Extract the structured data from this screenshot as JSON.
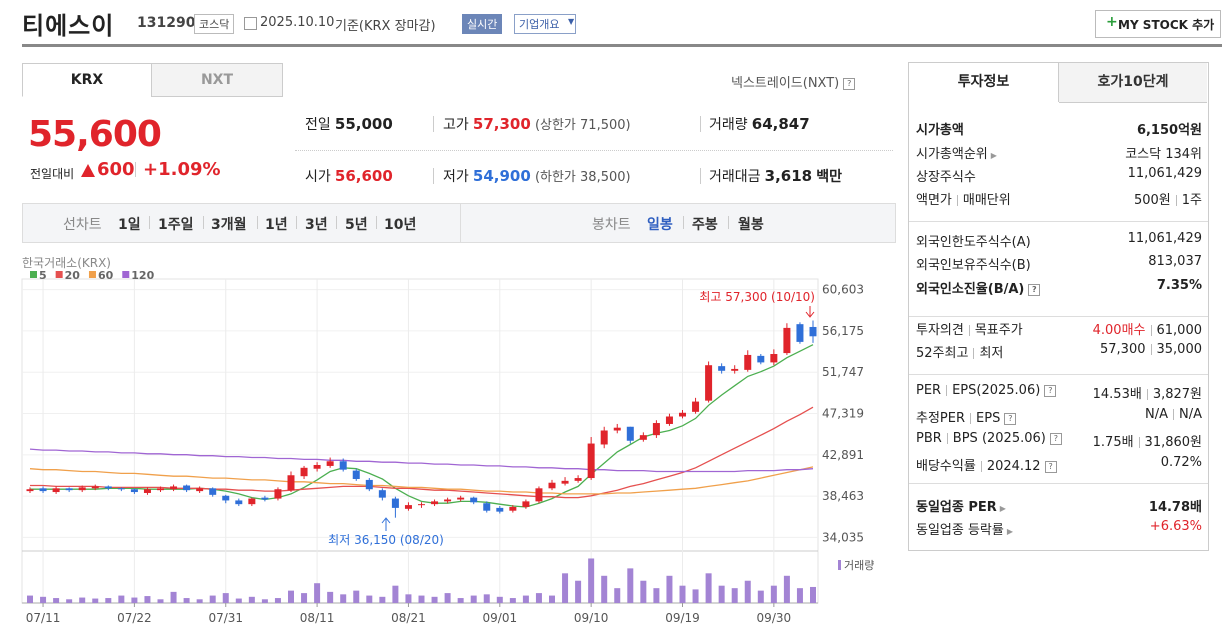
{
  "header": {
    "name": "티에스이",
    "code": "131290",
    "market": "코스닥",
    "date": "2025.10.10",
    "basis": "기준(KRX 장마감)",
    "realtime": "실시간",
    "overview": "기업개요",
    "mystock": "MY STOCK 추가"
  },
  "tabs": [
    "KRX",
    "NXT"
  ],
  "nxt_link": "넥스트레이드(NXT)",
  "price": {
    "current": "55,600",
    "change_label": "전일대비",
    "change": "600",
    "rate": "+1.09%"
  },
  "quote": [
    {
      "label": "전일",
      "value": "55,000"
    },
    {
      "label": "고가",
      "value": "57,300",
      "extra": "(상한가 71,500)"
    },
    {
      "label": "거래량",
      "value": "64,847"
    },
    {
      "label": "시가",
      "value": "56,600"
    },
    {
      "label": "저가",
      "value": "54,900",
      "extra": "(하한가 38,500)"
    },
    {
      "label": "거래대금",
      "value": "3,618",
      "unit": "백만"
    }
  ],
  "period_bar": {
    "line": "선차트",
    "periods": [
      "1일",
      "1주일",
      "3개월",
      "1년",
      "3년",
      "5년",
      "10년"
    ],
    "candle": "봉차트",
    "candle_periods": [
      "일봉",
      "주봉",
      "월봉"
    ]
  },
  "chart_data": {
    "type": "candlestick",
    "source": "한국거래소(KRX)",
    "up_color": "#e0242b",
    "down_color": "#2f6fd8",
    "volume_color": "#a384d4",
    "volume_label": "거래량",
    "ma": [
      {
        "name": "5",
        "color": "#4caf50",
        "values": [
          39200,
          39200,
          39200,
          39200,
          39200,
          39200,
          39300,
          39300,
          39300,
          39200,
          39200,
          39200,
          39200,
          39300,
          39200,
          39000,
          38700,
          38300,
          38100,
          38300,
          38700,
          39400,
          40200,
          41100,
          41500,
          41400,
          40900,
          40300,
          39300,
          38500,
          37900,
          37700,
          37700,
          37900,
          37900,
          37800,
          37600,
          37400,
          37300,
          37700,
          38200,
          38900,
          39500,
          40800,
          42000,
          43200,
          44000,
          44800,
          45200,
          45500,
          46000,
          46800,
          48200,
          49300,
          50300,
          51300,
          51800,
          52400,
          53300,
          54000,
          54700
        ]
      },
      {
        "name": "20",
        "color": "#e5504f",
        "values": [
          39600,
          39600,
          39500,
          39500,
          39500,
          39500,
          39400,
          39400,
          39400,
          39400,
          39400,
          39300,
          39300,
          39300,
          39200,
          39200,
          39100,
          39100,
          39000,
          39000,
          39100,
          39200,
          39300,
          39400,
          39500,
          39500,
          39500,
          39400,
          39300,
          39300,
          39200,
          39100,
          39100,
          39000,
          38900,
          38800,
          38700,
          38600,
          38500,
          38400,
          38400,
          38300,
          38300,
          38500,
          38800,
          39100,
          39500,
          39800,
          40200,
          40600,
          41000,
          41500,
          42200,
          42900,
          43600,
          44300,
          45000,
          45700,
          46500,
          47200,
          48000
        ]
      },
      {
        "name": "60",
        "color": "#f0a04b",
        "values": [
          41400,
          41300,
          41300,
          41200,
          41100,
          41100,
          41000,
          40900,
          40900,
          40800,
          40700,
          40600,
          40600,
          40500,
          40400,
          40400,
          40300,
          40200,
          40200,
          40100,
          40000,
          40000,
          39900,
          39800,
          39800,
          39700,
          39600,
          39600,
          39500,
          39400,
          39400,
          39300,
          39200,
          39200,
          39100,
          39000,
          39000,
          38900,
          38900,
          38800,
          38800,
          38700,
          38700,
          38700,
          38700,
          38800,
          38800,
          38900,
          39000,
          39100,
          39200,
          39300,
          39500,
          39700,
          39900,
          40100,
          40400,
          40700,
          41000,
          41300,
          41600
        ]
      },
      {
        "name": "120",
        "color": "#a066d3",
        "values": [
          43500,
          43400,
          43400,
          43300,
          43300,
          43200,
          43200,
          43100,
          43100,
          43000,
          43000,
          42900,
          42900,
          42800,
          42800,
          42700,
          42700,
          42600,
          42600,
          42500,
          42500,
          42400,
          42400,
          42300,
          42300,
          42200,
          42200,
          42100,
          42100,
          42000,
          42000,
          41900,
          41900,
          41800,
          41800,
          41700,
          41700,
          41600,
          41600,
          41500,
          41500,
          41400,
          41400,
          41300,
          41300,
          41200,
          41200,
          41200,
          41100,
          41100,
          41100,
          41100,
          41100,
          41100,
          41100,
          41200,
          41200,
          41200,
          41300,
          41300,
          41400
        ]
      }
    ],
    "categories": [
      null,
      "07/11",
      null,
      null,
      null,
      null,
      null,
      null,
      "07/22",
      null,
      null,
      null,
      null,
      null,
      null,
      "07/31",
      null,
      null,
      null,
      null,
      null,
      null,
      "08/11",
      null,
      null,
      null,
      null,
      null,
      null,
      "08/21",
      null,
      null,
      null,
      null,
      null,
      null,
      "09/01",
      null,
      null,
      null,
      null,
      null,
      null,
      "09/10",
      null,
      null,
      null,
      null,
      null,
      null,
      "09/19",
      null,
      null,
      null,
      null,
      null,
      null,
      "09/30",
      null,
      null,
      null
    ],
    "open": [
      39000,
      39300,
      38900,
      39300,
      39100,
      39300,
      39500,
      39300,
      39200,
      38800,
      39100,
      39200,
      39600,
      39000,
      39300,
      38500,
      38000,
      37600,
      38300,
      38200,
      39100,
      40600,
      41400,
      41700,
      42200,
      41200,
      40200,
      39100,
      38200,
      37100,
      37500,
      37600,
      37900,
      38100,
      38300,
      37700,
      37200,
      36900,
      37300,
      37900,
      39300,
      39800,
      40100,
      40400,
      44000,
      45500,
      45900,
      44500,
      45000,
      46200,
      47000,
      47500,
      48700,
      52400,
      51900,
      52000,
      53500,
      52800,
      53800,
      56900,
      56600
    ],
    "high": [
      39400,
      39500,
      39500,
      39400,
      39600,
      39700,
      39600,
      39400,
      39300,
      39400,
      39500,
      39700,
      39700,
      39500,
      39400,
      38600,
      38200,
      38300,
      38500,
      39400,
      41100,
      41700,
      42100,
      42600,
      42500,
      41400,
      40400,
      39300,
      38400,
      37800,
      37800,
      38100,
      38300,
      38500,
      38400,
      37900,
      37400,
      37500,
      38100,
      39500,
      40200,
      40500,
      40700,
      44800,
      45900,
      46200,
      45900,
      45300,
      46600,
      47300,
      47700,
      49000,
      52900,
      52700,
      52500,
      54100,
      53700,
      54200,
      57000,
      57100,
      57300
    ],
    "low": [
      38800,
      38800,
      38700,
      38900,
      38900,
      39100,
      39100,
      39000,
      38700,
      38600,
      38900,
      39000,
      38900,
      38800,
      38400,
      37700,
      37400,
      37400,
      37900,
      38000,
      38900,
      40300,
      41100,
      41500,
      41100,
      40100,
      39000,
      38000,
      36150,
      36900,
      37200,
      37400,
      37700,
      37900,
      37600,
      36700,
      36600,
      36700,
      37100,
      37700,
      39100,
      39600,
      39900,
      40200,
      43600,
      45200,
      44100,
      44300,
      44700,
      46000,
      46800,
      47300,
      48500,
      51600,
      51600,
      51800,
      52600,
      52500,
      53600,
      54800,
      54900
    ],
    "close": [
      39200,
      39000,
      39300,
      39100,
      39400,
      39500,
      39300,
      39200,
      38900,
      39200,
      39300,
      39500,
      39100,
      39300,
      38600,
      38000,
      37600,
      38200,
      38100,
      39200,
      40700,
      41500,
      41800,
      42200,
      41300,
      40300,
      39200,
      38300,
      37200,
      37500,
      37600,
      37900,
      38100,
      38300,
      37800,
      36900,
      36800,
      37300,
      37900,
      39300,
      39900,
      40100,
      40400,
      44100,
      45500,
      45800,
      44400,
      45000,
      46300,
      47000,
      47400,
      48600,
      52500,
      51900,
      52100,
      53600,
      52800,
      53700,
      56500,
      55000,
      55600
    ],
    "volume": [
      30000,
      25000,
      20000,
      15000,
      22000,
      18000,
      20000,
      30000,
      22000,
      28000,
      15000,
      45000,
      20000,
      15000,
      30000,
      40000,
      18000,
      25000,
      15000,
      20000,
      50000,
      40000,
      80000,
      45000,
      35000,
      50000,
      30000,
      25000,
      70000,
      35000,
      30000,
      25000,
      40000,
      20000,
      30000,
      35000,
      25000,
      20000,
      30000,
      40000,
      30000,
      120000,
      90000,
      180000,
      110000,
      60000,
      140000,
      90000,
      60000,
      110000,
      70000,
      55000,
      120000,
      70000,
      60000,
      90000,
      50000,
      70000,
      110000,
      60000,
      64847
    ],
    "ylim": [
      32900,
      61100
    ],
    "volume_ylim": [
      0,
      190000
    ],
    "yticks": [
      {
        "value": 34035,
        "label": "34,035"
      },
      {
        "value": 38463,
        "label": "38,463"
      },
      {
        "value": 42891,
        "label": "42,891"
      },
      {
        "value": 47319,
        "label": "47,319"
      },
      {
        "value": 51747,
        "label": "51,747"
      },
      {
        "value": 56175,
        "label": "56,175"
      },
      {
        "value": 60603,
        "label": "60,603"
      }
    ],
    "grid": true,
    "annotations": {
      "high": "최고 57,300 (10/10)",
      "low": "최저 36,150 (08/20)"
    }
  },
  "side": {
    "tabs": [
      "투자정보",
      "호가10단계"
    ],
    "groups": [
      [
        {
          "label": [
            "시가총액"
          ],
          "value": [
            "6,150억원"
          ]
        },
        {
          "label": [
            "시가총액순위"
          ],
          "value": [
            "코스닥 134위"
          ]
        },
        {
          "label": [
            "상장주식수"
          ],
          "value": [
            "11,061,429"
          ]
        },
        {
          "label": [
            "액면가",
            "매매단위"
          ],
          "value": [
            "500원",
            "1주"
          ]
        }
      ],
      [
        {
          "label": [
            "외국인한도주식수(A)"
          ],
          "value": [
            "11,061,429"
          ]
        },
        {
          "label": [
            "외국인보유주식수(B)"
          ],
          "value": [
            "813,037"
          ]
        },
        {
          "label": [
            "외국인소진율(B/A)"
          ],
          "value": [
            "7.35%"
          ]
        }
      ],
      [
        {
          "label": [
            "투자의견",
            "목표주가"
          ],
          "value": [
            "4.00매수",
            "61,000"
          ]
        },
        {
          "label": [
            "52주최고",
            "최저"
          ],
          "value": [
            "57,300",
            "35,000"
          ]
        }
      ],
      [
        {
          "label": [
            "PER",
            "EPS(2025.06)"
          ],
          "value": [
            "14.53배",
            "3,827원"
          ]
        },
        {
          "label": [
            "추정PER",
            "EPS"
          ],
          "value": [
            "N/A",
            "N/A"
          ]
        },
        {
          "label": [
            "PBR",
            "BPS (2025.06)"
          ],
          "value": [
            "1.75배",
            "31,860원"
          ]
        },
        {
          "label": [
            "배당수익률",
            "2024.12"
          ],
          "value": [
            "0.72%"
          ]
        }
      ],
      [
        {
          "label": [
            "동일업종 PER"
          ],
          "value": [
            "14.78배"
          ]
        },
        {
          "label": [
            "동일업종 등락률"
          ],
          "value": [
            "+6.63%"
          ]
        }
      ]
    ]
  }
}
